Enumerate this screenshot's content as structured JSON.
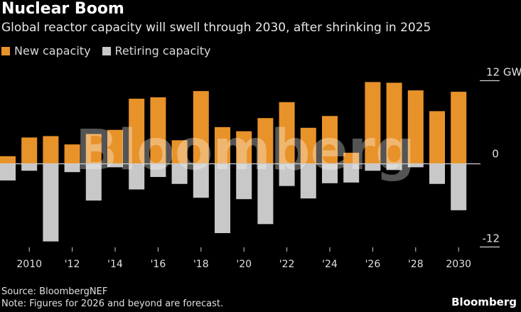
{
  "header": {
    "title": "Nuclear Boom",
    "subtitle": "Global reactor capacity will swell through 2030, after shrinking in 2025"
  },
  "legend": [
    {
      "label": "New capacity",
      "color": "#e8922a"
    },
    {
      "label": "Retiring capacity",
      "color": "#c8c8c8"
    }
  ],
  "footer": {
    "source": "Source: BloombergNEF",
    "note": "Note: Figures for 2026 and beyond are forecast.",
    "brand": "Bloomberg"
  },
  "watermark": "Bloomberg",
  "chart_data": {
    "type": "bar",
    "title": "Nuclear Boom",
    "subtitle": "Global reactor capacity will swell through 2030, after shrinking in 2025",
    "xlabel": "",
    "ylabel": "GW",
    "ylim": [
      -12,
      12
    ],
    "yticks": [
      {
        "value": 12,
        "label": "12 GW"
      },
      {
        "value": 0,
        "label": "0"
      },
      {
        "value": -12,
        "label": "-12"
      }
    ],
    "xticks": [
      {
        "year": 2010,
        "label": "2010"
      },
      {
        "year": 2012,
        "label": "'12"
      },
      {
        "year": 2014,
        "label": "'14"
      },
      {
        "year": 2016,
        "label": "'16"
      },
      {
        "year": 2018,
        "label": "'18"
      },
      {
        "year": 2020,
        "label": "'20"
      },
      {
        "year": 2022,
        "label": "'22"
      },
      {
        "year": 2024,
        "label": "'24"
      },
      {
        "year": 2026,
        "label": "'26"
      },
      {
        "year": 2028,
        "label": "'28"
      },
      {
        "year": 2030,
        "label": "2030"
      }
    ],
    "categories": [
      2009,
      2010,
      2011,
      2012,
      2013,
      2014,
      2015,
      2016,
      2017,
      2018,
      2019,
      2020,
      2021,
      2022,
      2023,
      2024,
      2025,
      2026,
      2027,
      2028,
      2029,
      2030
    ],
    "series": [
      {
        "name": "New capacity",
        "color": "#e8922a",
        "values": [
          1.1,
          3.8,
          4.0,
          2.8,
          4.3,
          4.9,
          9.4,
          9.6,
          3.4,
          10.5,
          5.3,
          4.7,
          6.6,
          8.9,
          5.2,
          6.9,
          1.6,
          11.8,
          11.7,
          10.6,
          7.6,
          10.4
        ]
      },
      {
        "name": "Retiring capacity",
        "color": "#c8c8c8",
        "values": [
          -2.4,
          -1.0,
          -11.2,
          -1.2,
          -5.3,
          -0.5,
          -3.7,
          -1.9,
          -2.9,
          -4.9,
          -10.0,
          -5.1,
          -8.7,
          -3.2,
          -5.0,
          -2.8,
          -2.7,
          -1.0,
          -0.9,
          -0.5,
          -2.9,
          -6.7
        ]
      }
    ],
    "grid": false,
    "zero_line": true,
    "legend_position": "top-left",
    "forecast_from": 2026
  }
}
